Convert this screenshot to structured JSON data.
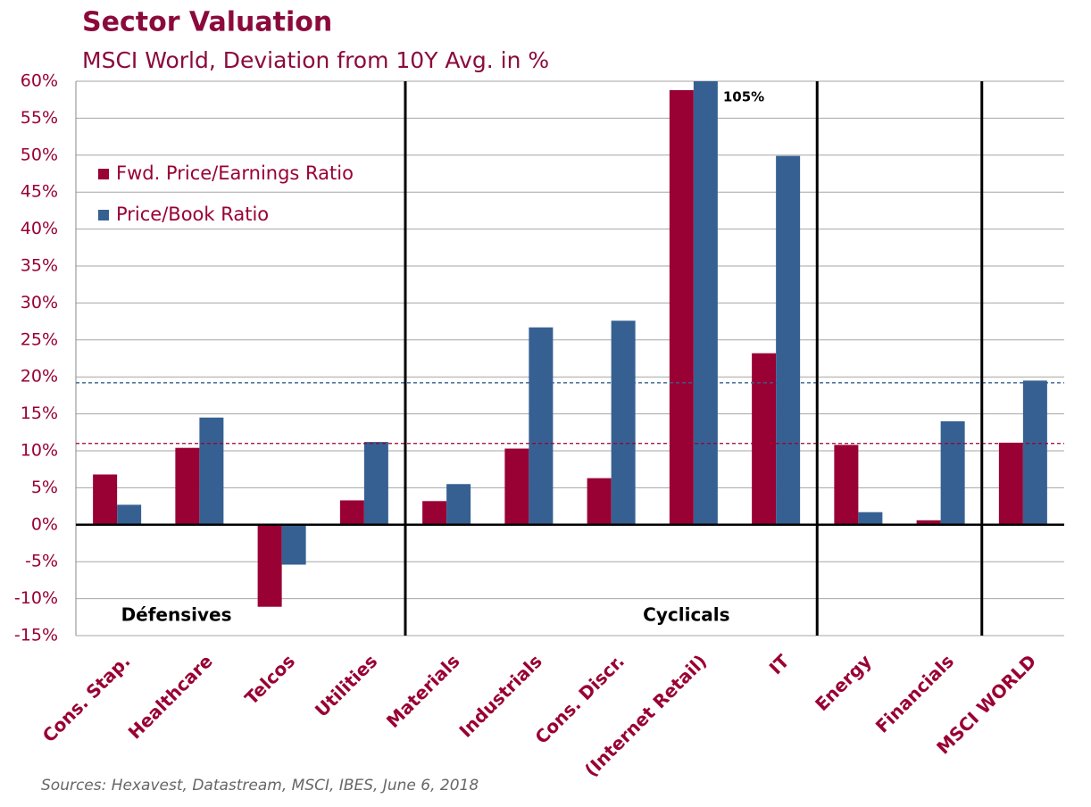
{
  "chart_data": {
    "type": "bar",
    "title": "Sector Valuation",
    "subtitle": "MSCI World, Deviation from 10Y Avg. in %",
    "source": "Sources: Hexavest, Datastream, MSCI, IBES, June 6, 2018",
    "categories": [
      "Cons. Stap.",
      "Healthcare",
      "Telcos",
      "Utilities",
      "Materials",
      "Industrials",
      "Cons. Discr.",
      "(Internet Retail)",
      "IT",
      "Energy",
      "Financials",
      "MSCI WORLD"
    ],
    "series": [
      {
        "name": "Fwd. Price/Earnings Ratio",
        "color": "#990033",
        "values": [
          6.8,
          10.4,
          -11.1,
          3.3,
          3.2,
          10.3,
          6.3,
          58.8,
          23.2,
          10.8,
          0.6,
          11.1
        ]
      },
      {
        "name": "Price/Book Ratio",
        "color": "#366092",
        "values": [
          2.7,
          14.5,
          -5.4,
          11.2,
          5.5,
          26.7,
          27.6,
          105,
          49.9,
          1.7,
          14.0,
          19.5
        ],
        "value_labels": [
          null,
          null,
          null,
          null,
          null,
          null,
          null,
          "105%",
          null,
          null,
          null,
          null
        ]
      }
    ],
    "reference_lines": [
      {
        "value": 11.0,
        "color": "#990033"
      },
      {
        "value": 19.2,
        "color": "#366092"
      }
    ],
    "groups": [
      {
        "label": "Défensives",
        "start": 0
      },
      {
        "label": "Cyclicals",
        "start": 4
      }
    ],
    "separators": [
      4,
      9,
      11
    ],
    "ylim": [
      -15,
      60
    ],
    "yticks": [
      {
        "value": -15,
        "label": "-15%"
      },
      {
        "value": -10,
        "label": "-10%"
      },
      {
        "value": -5,
        "label": "-5%"
      },
      {
        "value": 0,
        "label": "0%"
      },
      {
        "value": 5,
        "label": "5%"
      },
      {
        "value": 10,
        "label": "10%"
      },
      {
        "value": 15,
        "label": "15%"
      },
      {
        "value": 20,
        "label": "20%"
      },
      {
        "value": 25,
        "label": "25%"
      },
      {
        "value": 30,
        "label": "30%"
      },
      {
        "value": 35,
        "label": "35%"
      },
      {
        "value": 40,
        "label": "40%"
      },
      {
        "value": 45,
        "label": "45%"
      },
      {
        "value": 50,
        "label": "50%"
      },
      {
        "value": 55,
        "label": "55%"
      },
      {
        "value": 60,
        "label": "60%"
      }
    ],
    "grid": true,
    "legend": "upper left"
  }
}
